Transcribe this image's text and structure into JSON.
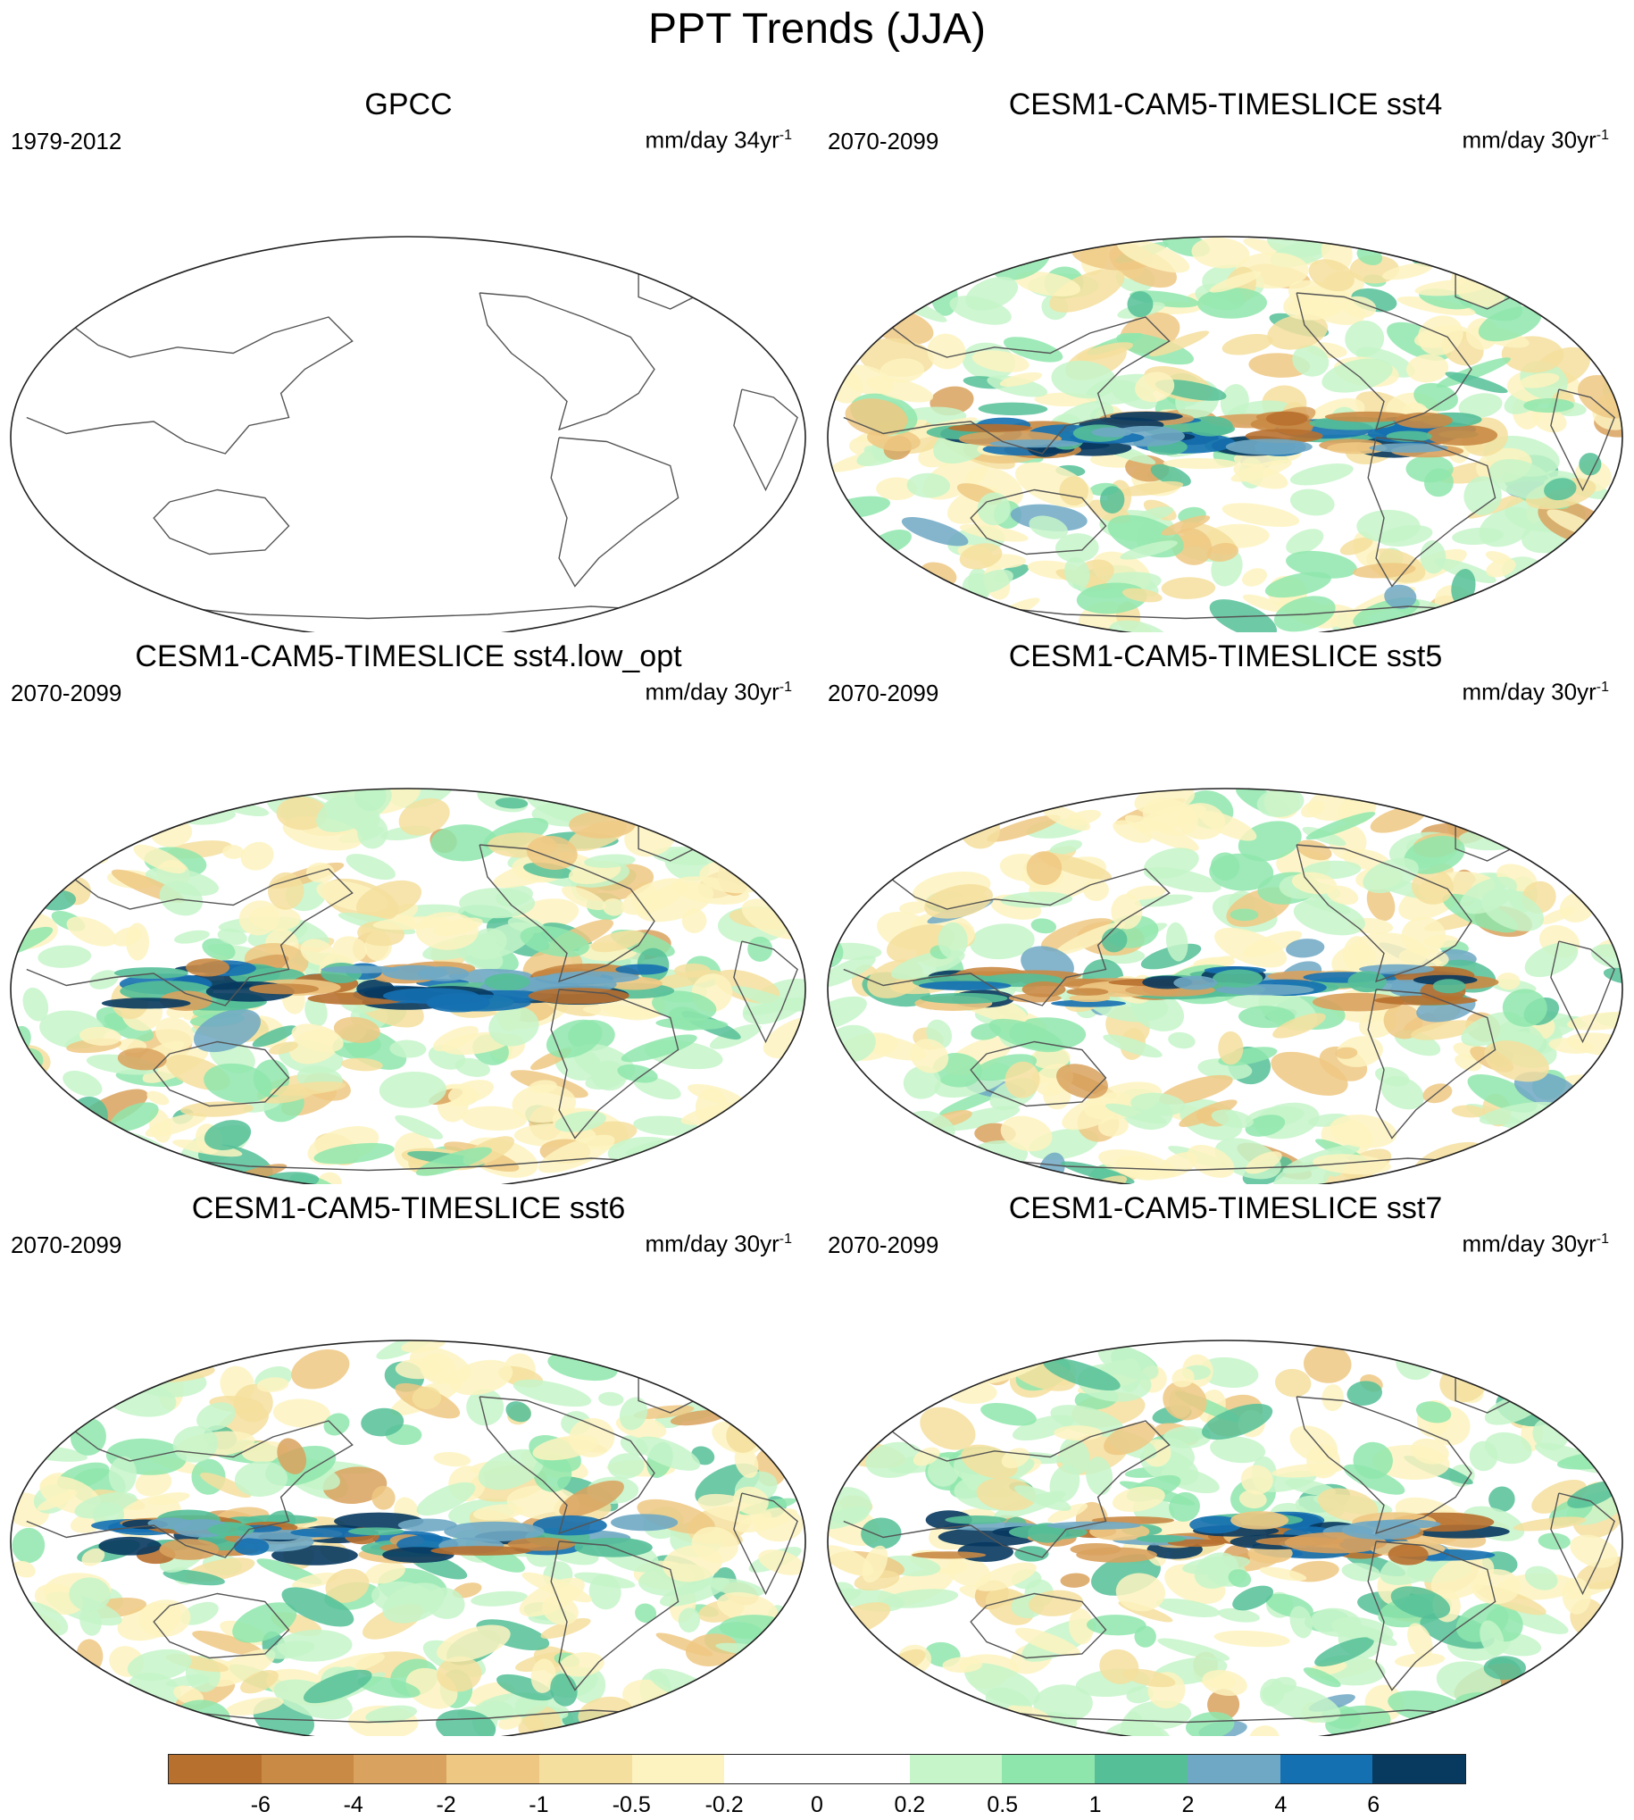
{
  "title": "PPT Trends (JJA)",
  "panels": [
    {
      "title": "GPCC",
      "period": "1979-2012",
      "units": "mm/day 34yr",
      "units_sup": "-1",
      "fill": "none"
    },
    {
      "title": "CESM1-CAM5-TIMESLICE sst4",
      "period": "2070-2099",
      "units": "mm/day 30yr",
      "units_sup": "-1",
      "fill": "model"
    },
    {
      "title": "CESM1-CAM5-TIMESLICE sst4.low_opt",
      "period": "2070-2099",
      "units": "mm/day 30yr",
      "units_sup": "-1",
      "fill": "model"
    },
    {
      "title": "CESM1-CAM5-TIMESLICE sst5",
      "period": "2070-2099",
      "units": "mm/day 30yr",
      "units_sup": "-1",
      "fill": "model"
    },
    {
      "title": "CESM1-CAM5-TIMESLICE sst6",
      "period": "2070-2099",
      "units": "mm/day 30yr",
      "units_sup": "-1",
      "fill": "model"
    },
    {
      "title": "CESM1-CAM5-TIMESLICE sst7",
      "period": "2070-2099",
      "units": "mm/day 30yr",
      "units_sup": "-1",
      "fill": "model"
    }
  ],
  "colorbar": {
    "colors": [
      "#b8702f",
      "#c98a45",
      "#d9a25e",
      "#eec883",
      "#f5df9e",
      "#fdf3c0",
      "#ffffff",
      "#ffffff",
      "#c6f5c9",
      "#8fe6ad",
      "#55bf98",
      "#6fa8c4",
      "#1570b1",
      "#08395f"
    ],
    "labels": [
      "-6",
      "-4",
      "-2",
      "-1",
      "-0.5",
      "-0.2",
      "0",
      "0.2",
      "0.5",
      "1",
      "2",
      "4",
      "6"
    ]
  }
}
